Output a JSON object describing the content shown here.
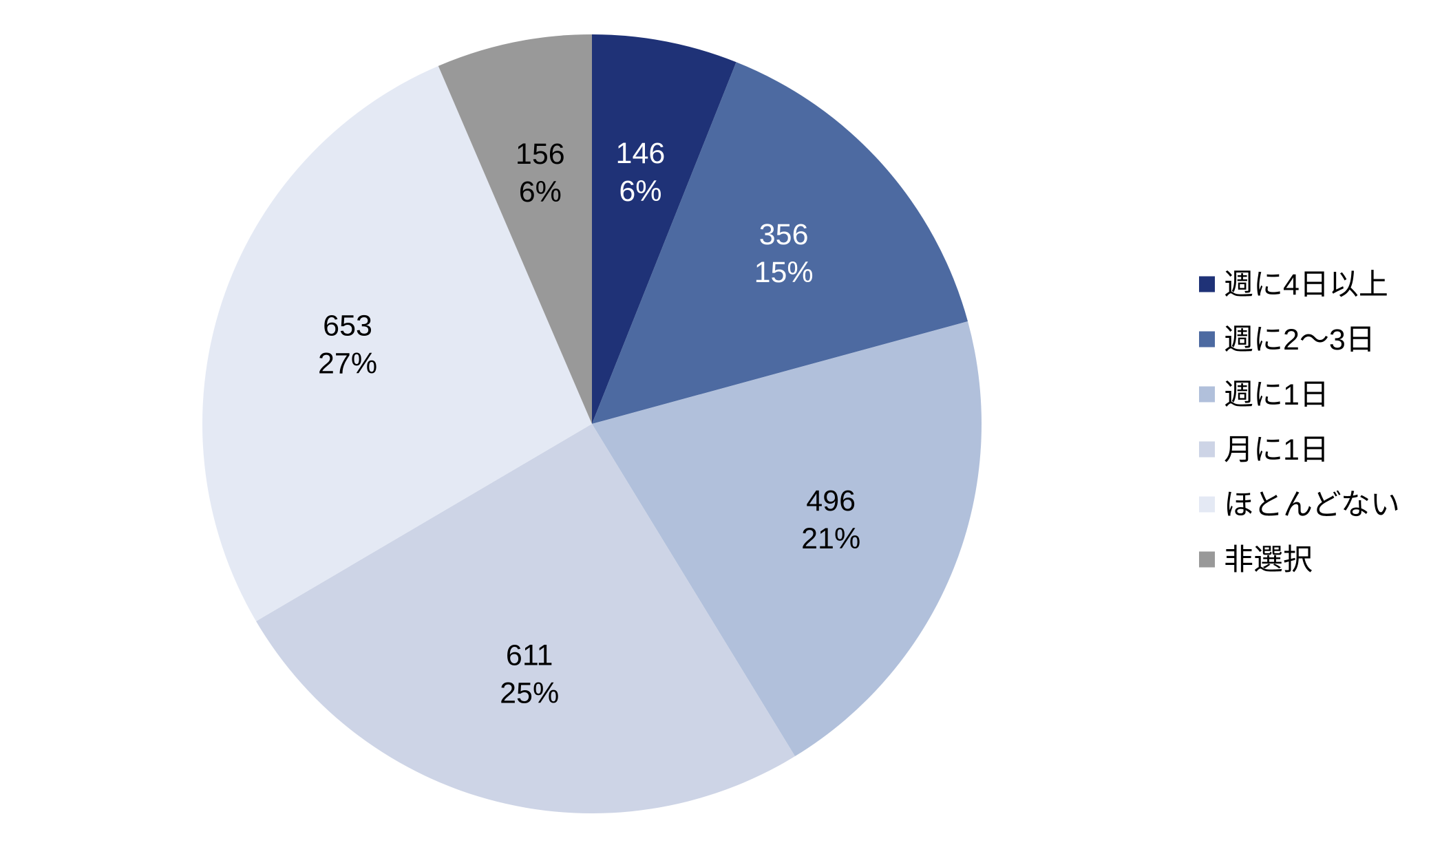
{
  "chart_data": {
    "type": "pie",
    "start_angle_deg": 0,
    "direction": "clockwise",
    "legend_position": "right",
    "slices": [
      {
        "label": "週に4日以上",
        "value": 146,
        "percent": "6%",
        "color": "#1f3277",
        "text_color": "#ffffff"
      },
      {
        "label": "週に2～3日",
        "value": 356,
        "percent": "15%",
        "color": "#4d6aa1",
        "text_color": "#ffffff"
      },
      {
        "label": "週に1日",
        "value": 496,
        "percent": "21%",
        "color": "#b1c0db",
        "text_color": "#000000"
      },
      {
        "label": "月に1日",
        "value": 611,
        "percent": "25%",
        "color": "#cdd4e6",
        "text_color": "#000000"
      },
      {
        "label": "ほとんどない",
        "value": 653,
        "percent": "27%",
        "color": "#e4e9f4",
        "text_color": "#000000"
      },
      {
        "label": "非選択",
        "value": 156,
        "percent": "6%",
        "color": "#999999",
        "text_color": "#000000"
      }
    ]
  }
}
